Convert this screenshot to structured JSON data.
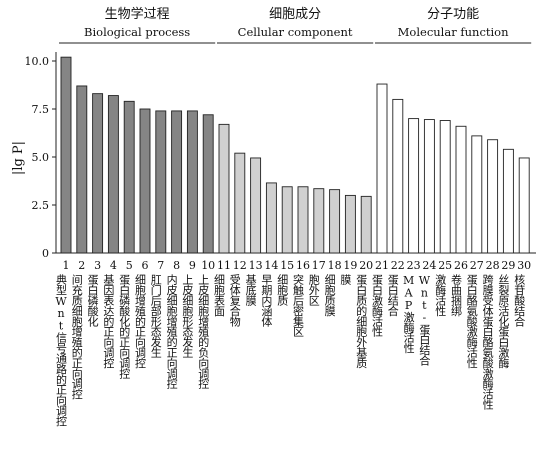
{
  "chart_data": {
    "type": "bar",
    "ylabel": "|lg P|",
    "ylim": [
      0,
      10.5
    ],
    "yticks": [
      0,
      2.5,
      5.0,
      7.5,
      10.0
    ],
    "ytick_labels": [
      "0",
      "2.5",
      "5.0",
      "7.5",
      "10.0"
    ],
    "groups": [
      {
        "cn": "生物学过程",
        "en": "Biological process",
        "fill": "#858585",
        "first": 1,
        "last": 10
      },
      {
        "cn": "细胞成分",
        "en": "Cellular component",
        "fill": "#d0d0d0",
        "first": 11,
        "last": 20
      },
      {
        "cn": "分子功能",
        "en": "Molecular function",
        "fill": "#ffffff",
        "first": 21,
        "last": 30
      }
    ],
    "categories": [
      "1",
      "2",
      "3",
      "4",
      "5",
      "6",
      "7",
      "8",
      "9",
      "10",
      "11",
      "12",
      "13",
      "14",
      "15",
      "16",
      "17",
      "18",
      "19",
      "20",
      "21",
      "22",
      "23",
      "24",
      "25",
      "26",
      "27",
      "28",
      "29",
      "30"
    ],
    "values": [
      10.2,
      8.7,
      8.3,
      8.2,
      7.9,
      7.5,
      7.4,
      7.4,
      7.4,
      7.2,
      6.7,
      5.2,
      4.95,
      3.65,
      3.45,
      3.45,
      3.35,
      3.3,
      3.0,
      2.95,
      8.8,
      8.0,
      7.0,
      6.95,
      6.9,
      6.6,
      6.1,
      5.9,
      5.4,
      4.95
    ],
    "term_labels": [
      "典型Wnt信号通路的正向调控",
      "间充质细胞增殖的正向调控",
      "蛋白磷酸化",
      "基因表达的正向调控",
      "蛋白磷酸化的正向调控",
      "细胞增殖的正向调控",
      "肛门后部形态发生",
      "内皮细胞增殖的正向调控",
      "上皮细胞形态发生",
      "上皮细胞增殖的负向调控",
      "细胞表面",
      "受体复合物",
      "基底膜",
      "早期内涵体",
      "细胞质",
      "突触后密集区",
      "胞外区",
      "细胞质膜",
      "膜",
      "蛋白质的细胞外基质",
      "蛋白激酶活性",
      "蛋白结合",
      "MAP激酶活性",
      "Wnt-蛋白结合",
      "激酶活性",
      "卷曲捆绑",
      "蛋白酪氨酸激酶活性",
      "跨膜受体蛋白酪氨酸激酶活性",
      "丝裂原活化蛋白激酶",
      "核苷酸结合"
    ]
  }
}
